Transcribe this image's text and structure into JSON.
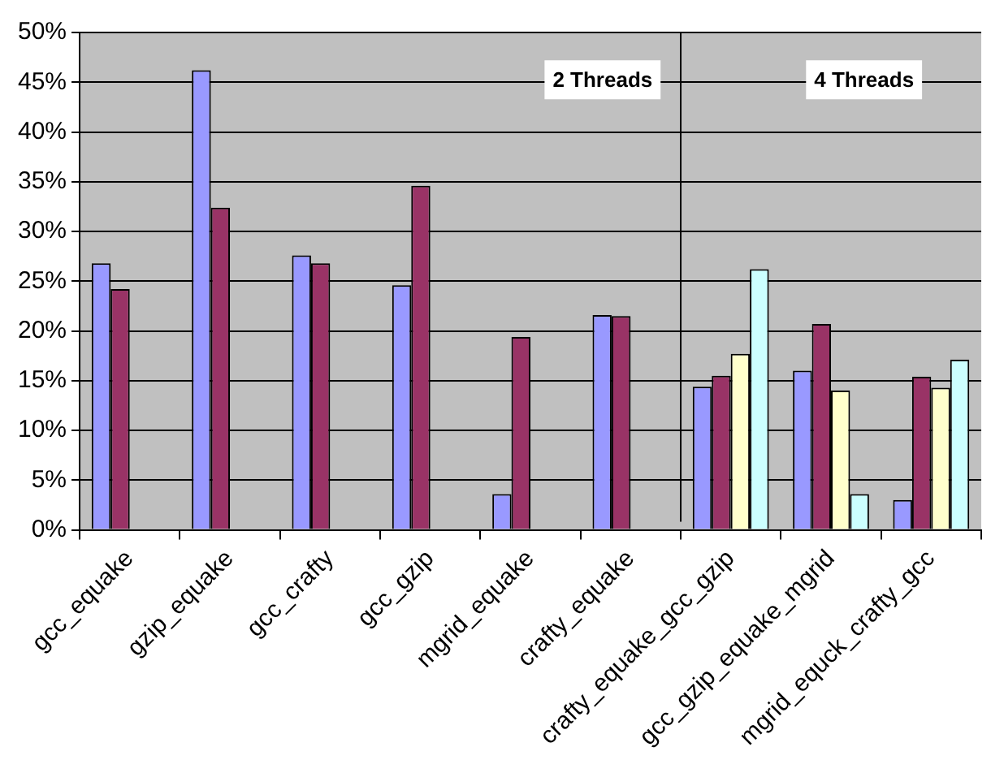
{
  "chart_data": {
    "type": "bar",
    "categories": [
      "gcc_equake",
      "gzip_equake",
      "gcc_crafty",
      "gcc_gzip",
      "mgrid_equake",
      "crafty_equake",
      "crafty_equake_gcc_gzip",
      "gcc_gzip_equake_mgrid",
      "mgrid_equck_crafty_gcc"
    ],
    "series": [
      {
        "color": "#9999ff",
        "values": [
          26.8,
          46.2,
          27.6,
          24.6,
          3.6,
          21.6,
          14.4,
          16.0,
          3.0
        ]
      },
      {
        "color": "#993366",
        "values": [
          24.2,
          32.4,
          26.8,
          34.6,
          19.4,
          21.5,
          15.5,
          20.7,
          15.4
        ]
      },
      {
        "color": "#ffffcc",
        "values": [
          null,
          null,
          null,
          null,
          null,
          null,
          17.7,
          14.0,
          14.3
        ]
      },
      {
        "color": "#ccffff",
        "values": [
          null,
          null,
          null,
          null,
          null,
          null,
          26.2,
          3.6,
          17.1
        ]
      }
    ],
    "ylim": [
      0,
      50
    ],
    "yticks": [
      {
        "value": 0,
        "label": "0%"
      },
      {
        "value": 5,
        "label": "5%"
      },
      {
        "value": 10,
        "label": "10%"
      },
      {
        "value": 15,
        "label": "15%"
      },
      {
        "value": 20,
        "label": "20%"
      },
      {
        "value": 25,
        "label": "25%"
      },
      {
        "value": 30,
        "label": "30%"
      },
      {
        "value": 35,
        "label": "35%"
      },
      {
        "value": 40,
        "label": "40%"
      },
      {
        "value": 45,
        "label": "45%"
      },
      {
        "value": 50,
        "label": "50%"
      }
    ],
    "annotations": [
      "2 Threads",
      "4 Threads"
    ],
    "grid": "y",
    "legend": false
  }
}
